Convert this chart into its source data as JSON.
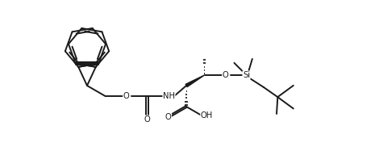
{
  "bg_color": "#ffffff",
  "line_color": "#1a1a1a",
  "line_width": 1.4,
  "figsize": [
    4.7,
    2.08
  ],
  "dpi": 100,
  "xlim": [
    0,
    4.7
  ],
  "ylim": [
    0,
    2.08
  ]
}
